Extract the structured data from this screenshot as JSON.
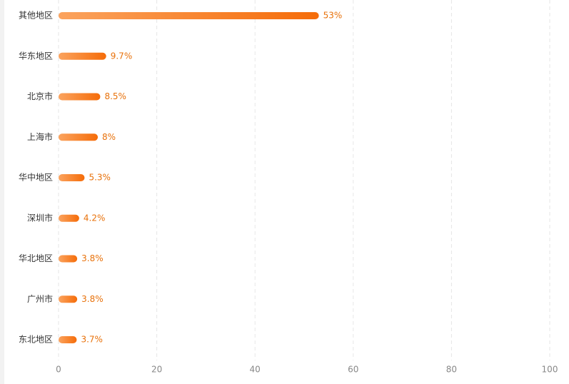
{
  "chart_data": {
    "type": "bar",
    "orientation": "horizontal",
    "categories": [
      "其他地区",
      "华东地区",
      "北京市",
      "上海市",
      "华中地区",
      "深圳市",
      "华北地区",
      "广州市",
      "东北地区"
    ],
    "values": [
      53,
      9.7,
      8.5,
      8,
      5.3,
      4.2,
      3.8,
      3.8,
      3.7
    ],
    "value_labels": [
      "53%",
      "9.7%",
      "8.5%",
      "8%",
      "5.3%",
      "4.2%",
      "3.8%",
      "3.8%",
      "3.7%"
    ],
    "gradient_colors": [
      "#fba35e",
      "#f56c09"
    ],
    "label_color": "#e8710a",
    "xlim": [
      0,
      100
    ],
    "xticks": [
      0,
      20,
      40,
      60,
      80,
      100
    ],
    "grid": true
  }
}
